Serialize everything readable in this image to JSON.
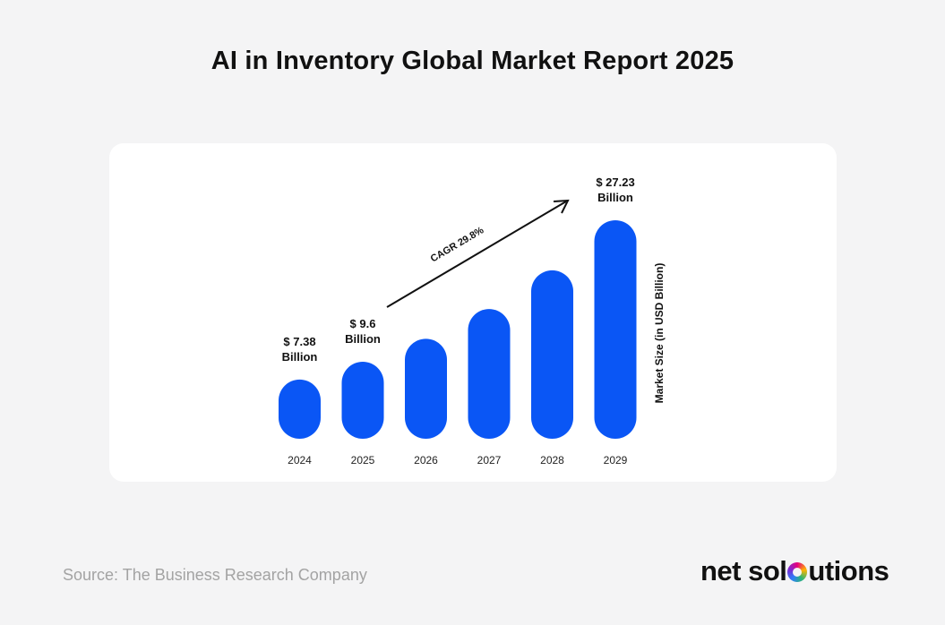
{
  "title": "AI in Inventory Global Market Report 2025",
  "source": "Source: The Business Research Company",
  "logo": {
    "part1": "net sol",
    "part2": "utions"
  },
  "colors": {
    "bar": "#0a56f5",
    "background": "#f4f4f5",
    "card": "#ffffff"
  },
  "chart_data": {
    "type": "bar",
    "title": "AI in Inventory Global Market Report 2025",
    "categories": [
      "2024",
      "2025",
      "2026",
      "2027",
      "2028",
      "2029"
    ],
    "values": [
      7.38,
      9.6,
      12.46,
      16.17,
      20.99,
      27.23
    ],
    "data_labels": [
      {
        "category": "2024",
        "line1": "$ 7.38",
        "line2": "Billion"
      },
      {
        "category": "2025",
        "line1": "$ 9.6",
        "line2": "Billion"
      },
      {
        "category": "2029",
        "line1": "$ 27.23",
        "line2": "Billion"
      }
    ],
    "ylabel": "Market Size (in USD Billion)",
    "annotation": "CAGR 29.8%",
    "grid": false,
    "legend": "none"
  }
}
